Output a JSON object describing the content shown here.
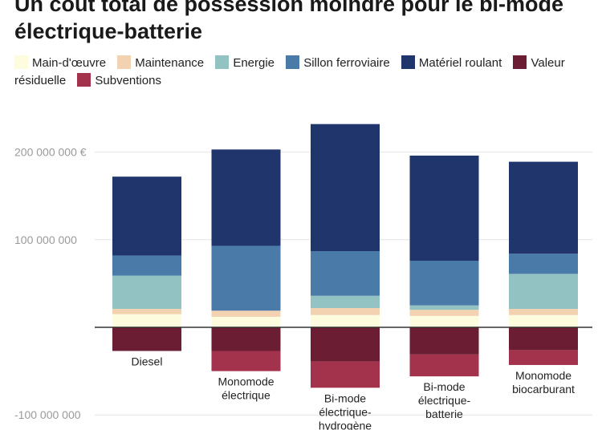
{
  "title": "Un coût total de possession moindre pour le bi-mode\nélectrique-batterie",
  "chart_data": {
    "type": "bar",
    "stacked": true,
    "categories": [
      [
        "Diesel"
      ],
      [
        "Monomode",
        "électrique"
      ],
      [
        "Bi-mode",
        "électrique-",
        "hydrogène"
      ],
      [
        "Bi-mode",
        "électrique-",
        "batterie"
      ],
      [
        "Monomode",
        "biocarburant"
      ]
    ],
    "series": [
      {
        "name": "Main-d'œuvre",
        "color": "#fefcde",
        "values": [
          15000000,
          12000000,
          14000000,
          13000000,
          14000000
        ]
      },
      {
        "name": "Maintenance",
        "color": "#f2d2b1",
        "values": [
          6000000,
          7000000,
          8000000,
          7000000,
          7000000
        ]
      },
      {
        "name": "Energie",
        "color": "#93c2c2",
        "values": [
          38000000,
          0,
          14000000,
          5000000,
          40000000
        ]
      },
      {
        "name": "Sillon ferroviaire",
        "color": "#4a7aa8",
        "values": [
          23000000,
          74000000,
          51000000,
          51000000,
          23000000
        ]
      },
      {
        "name": "Matériel roulant",
        "color": "#20356b",
        "values": [
          90000000,
          110000000,
          145000000,
          120000000,
          105000000
        ]
      },
      {
        "name": "Valeur résiduelle",
        "color": "#6b1d33",
        "values": [
          -27000000,
          -27000000,
          -39000000,
          -31000000,
          -26000000
        ]
      },
      {
        "name": "Subventions",
        "color": "#a3324d",
        "values": [
          0,
          -23000000,
          -30000000,
          -25000000,
          -17000000
        ]
      }
    ],
    "y_ticks": [
      {
        "value": 200000000,
        "label": "200 000 000 €"
      },
      {
        "value": 100000000,
        "label": "100 000 000"
      },
      {
        "value": -100000000,
        "label": "-100 000 000"
      }
    ],
    "ylim": [
      -112000000,
      245000000
    ],
    "grid": true,
    "legend_position": "top"
  }
}
